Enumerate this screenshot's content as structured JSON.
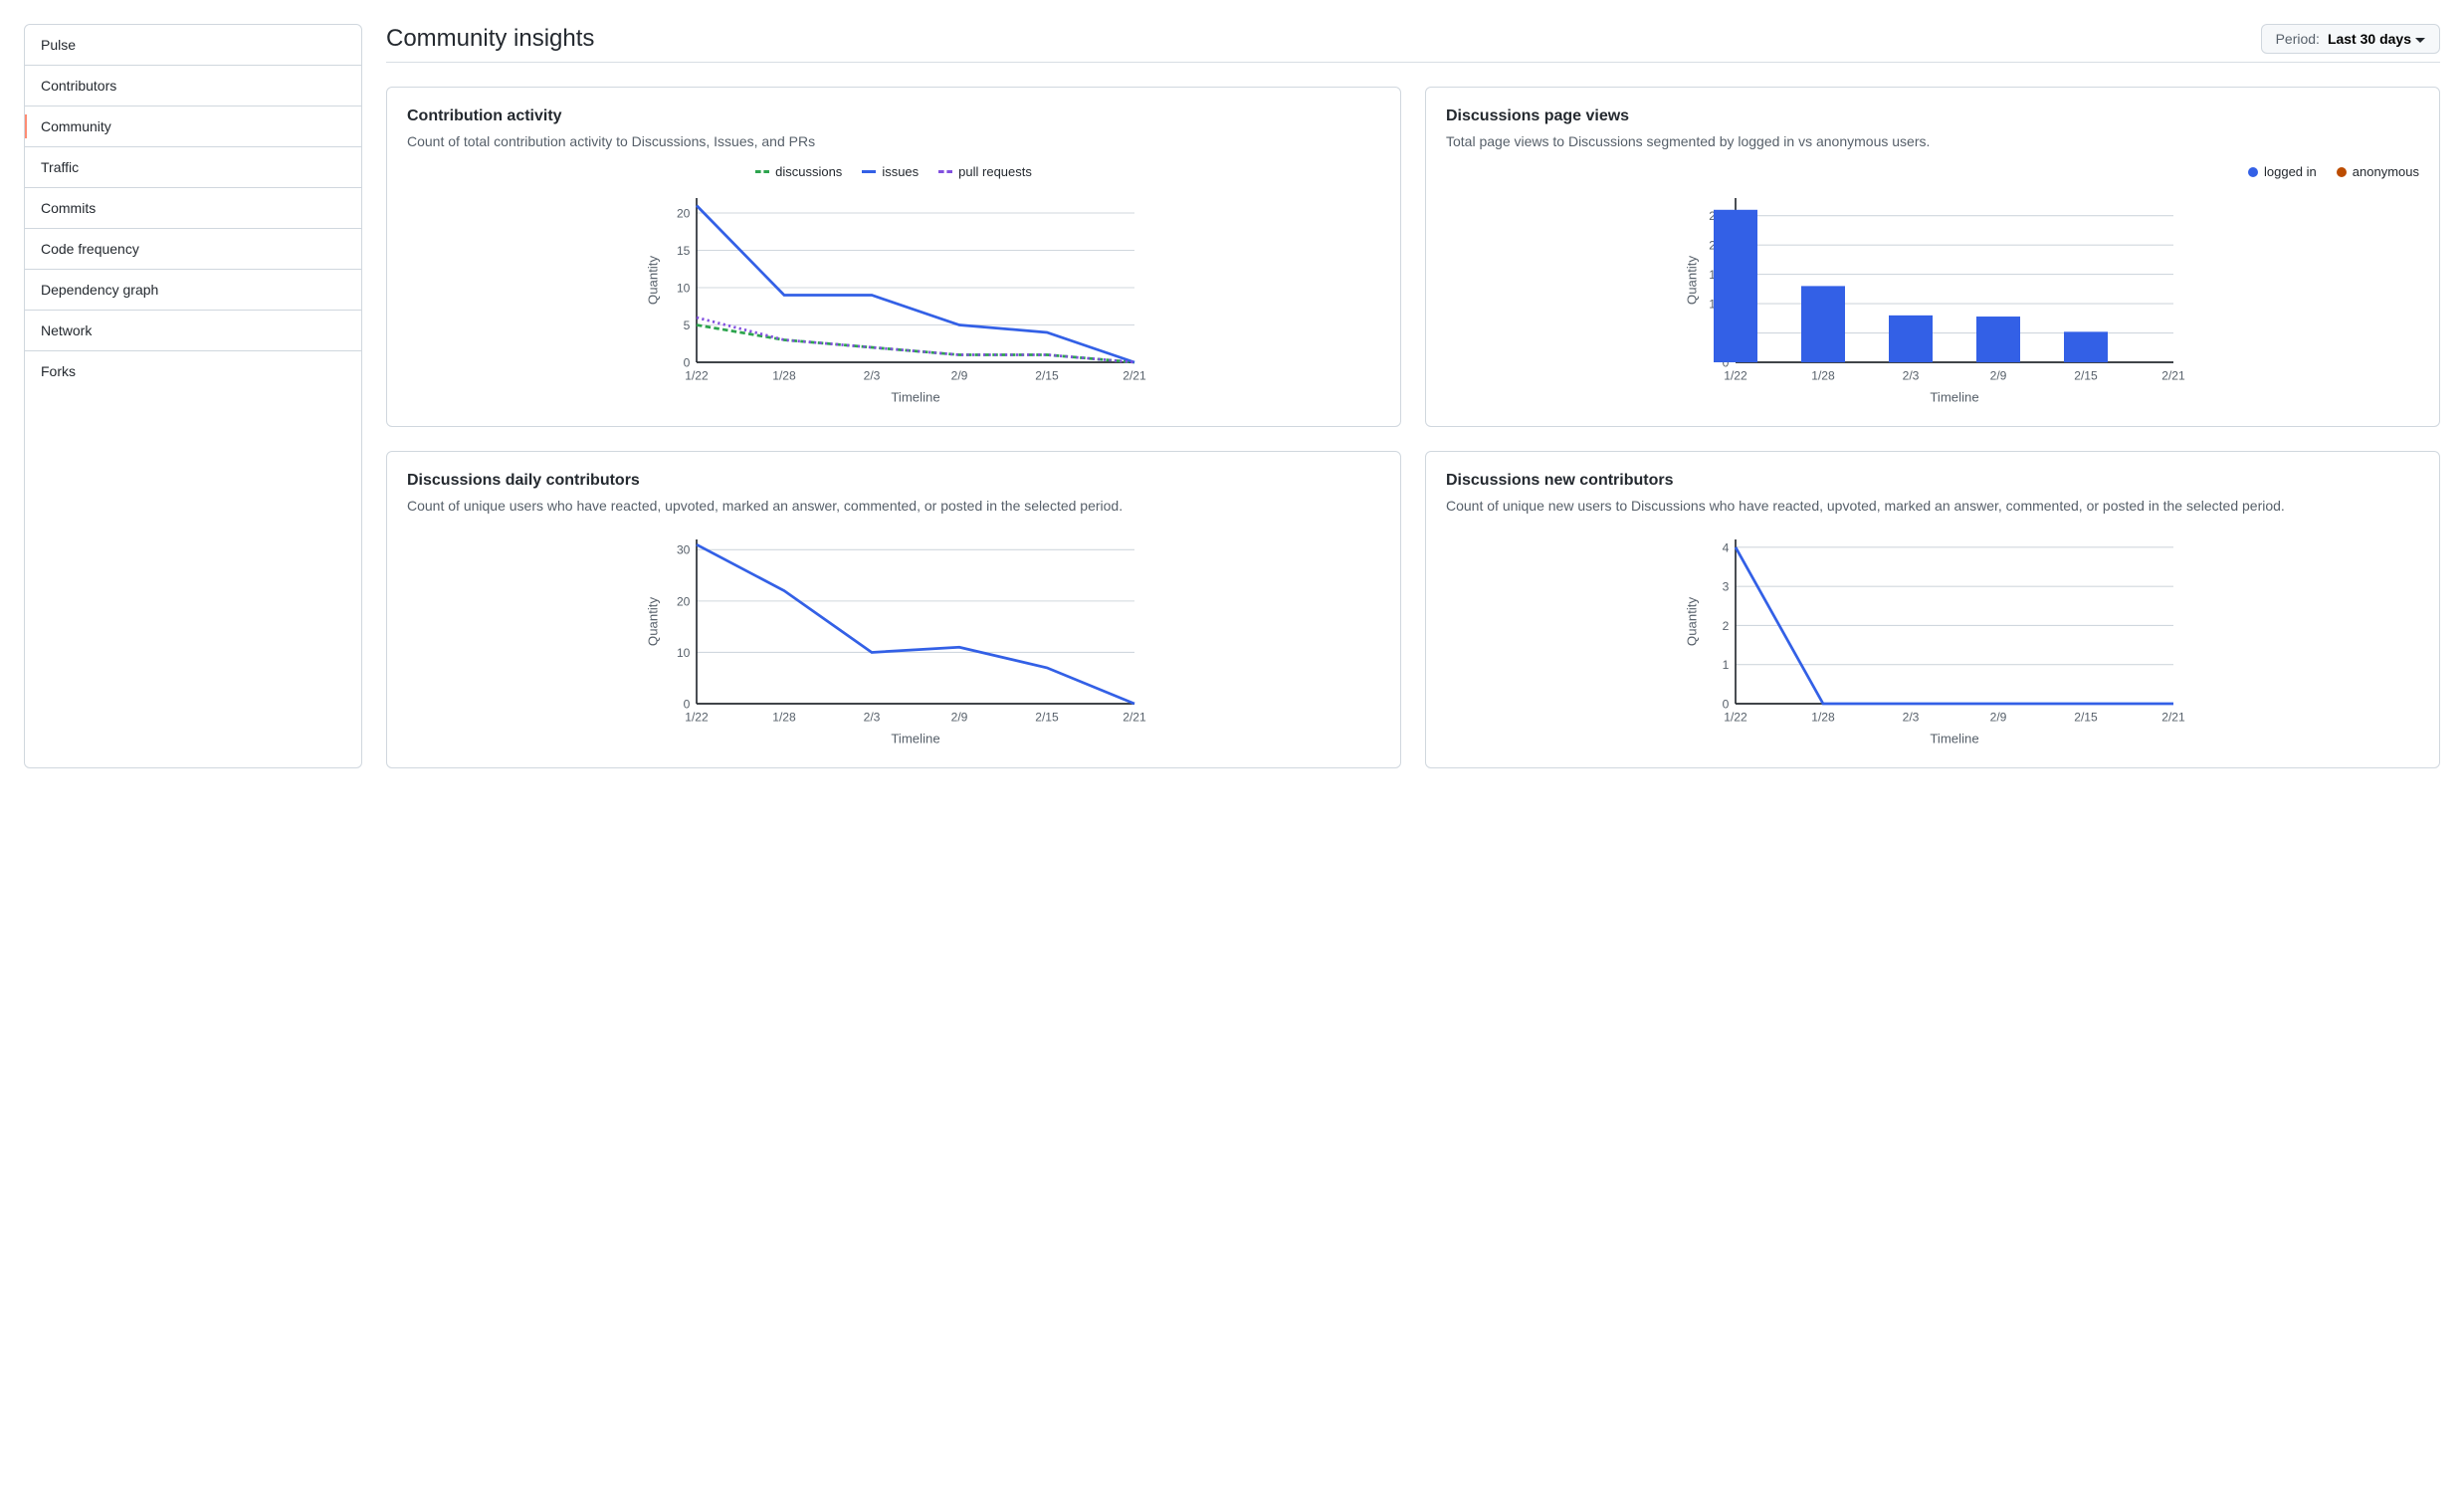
{
  "sidebar": {
    "items": [
      {
        "label": "Pulse"
      },
      {
        "label": "Contributors"
      },
      {
        "label": "Community",
        "active": true
      },
      {
        "label": "Traffic"
      },
      {
        "label": "Commits"
      },
      {
        "label": "Code frequency"
      },
      {
        "label": "Dependency graph"
      },
      {
        "label": "Network"
      },
      {
        "label": "Forks"
      }
    ]
  },
  "header": {
    "title": "Community insights",
    "period_label": "Period:",
    "period_value": "Last 30 days"
  },
  "charts": {
    "contribution": {
      "title": "Contribution activity",
      "desc": "Count of total contribution activity to Discussions, Issues, and PRs",
      "type": "line-multi",
      "x_label": "Timeline",
      "y_label": "Quantity",
      "x_ticks": [
        "1/22",
        "1/28",
        "2/3",
        "2/9",
        "2/15",
        "2/21"
      ],
      "y_ticks": [
        0,
        5,
        10,
        15,
        20
      ],
      "ylim": [
        0,
        22
      ],
      "grid_color": "#d0d7de",
      "axis_color": "#24292f",
      "series": [
        {
          "name": "discussions",
          "color": "#2da44e",
          "dash": "5,3",
          "values": [
            5,
            3,
            2,
            1,
            1,
            0
          ]
        },
        {
          "name": "issues",
          "color": "#3360e6",
          "dash": "",
          "values": [
            21,
            9,
            9,
            5,
            4,
            0
          ]
        },
        {
          "name": "pull requests",
          "color": "#8250df",
          "dash": "2,3",
          "values": [
            6,
            3,
            2,
            1,
            1,
            0
          ]
        }
      ]
    },
    "page_views": {
      "title": "Discussions page views",
      "desc": "Total page views to Discussions segmented by logged in vs anonymous users.",
      "type": "bar-stacked",
      "x_label": "Timeline",
      "y_label": "Quantity",
      "x_ticks": [
        "1/22",
        "1/28",
        "2/3",
        "2/9",
        "2/15",
        "2/21"
      ],
      "y_ticks": [
        0,
        50,
        100,
        150,
        200,
        250
      ],
      "ylim": [
        0,
        280
      ],
      "grid_color": "#d0d7de",
      "axis_color": "#24292f",
      "bar_width": 0.6,
      "series": [
        {
          "name": "logged in",
          "color": "#3360e6",
          "values": [
            260,
            130,
            80,
            78,
            52,
            0
          ]
        },
        {
          "name": "anonymous",
          "color": "#bc4c00",
          "values": [
            0,
            0,
            0,
            0,
            0,
            0
          ]
        }
      ]
    },
    "daily_contrib": {
      "title": "Discussions daily contributors",
      "desc": "Count of unique users who have reacted, upvoted, marked an answer, commented, or posted in the selected period.",
      "type": "line",
      "x_label": "Timeline",
      "y_label": "Quantity",
      "x_ticks": [
        "1/22",
        "1/28",
        "2/3",
        "2/9",
        "2/15",
        "2/21"
      ],
      "y_ticks": [
        0,
        10,
        20,
        30
      ],
      "ylim": [
        0,
        32
      ],
      "grid_color": "#d0d7de",
      "axis_color": "#24292f",
      "color": "#3360e6",
      "values": [
        31,
        22,
        10,
        11,
        7,
        0
      ]
    },
    "new_contrib": {
      "title": "Discussions new contributors",
      "desc": "Count of unique new users to Discussions who have reacted, upvoted, marked an answer, commented, or posted in the selected period.",
      "type": "line",
      "x_label": "Timeline",
      "y_label": "Quantity",
      "x_ticks": [
        "1/22",
        "1/28",
        "2/3",
        "2/9",
        "2/15",
        "2/21"
      ],
      "y_ticks": [
        0,
        1,
        2,
        3,
        4
      ],
      "ylim": [
        0,
        4.2
      ],
      "grid_color": "#d0d7de",
      "axis_color": "#24292f",
      "color": "#3360e6",
      "values": [
        4,
        0,
        0,
        0,
        0,
        0
      ]
    }
  }
}
